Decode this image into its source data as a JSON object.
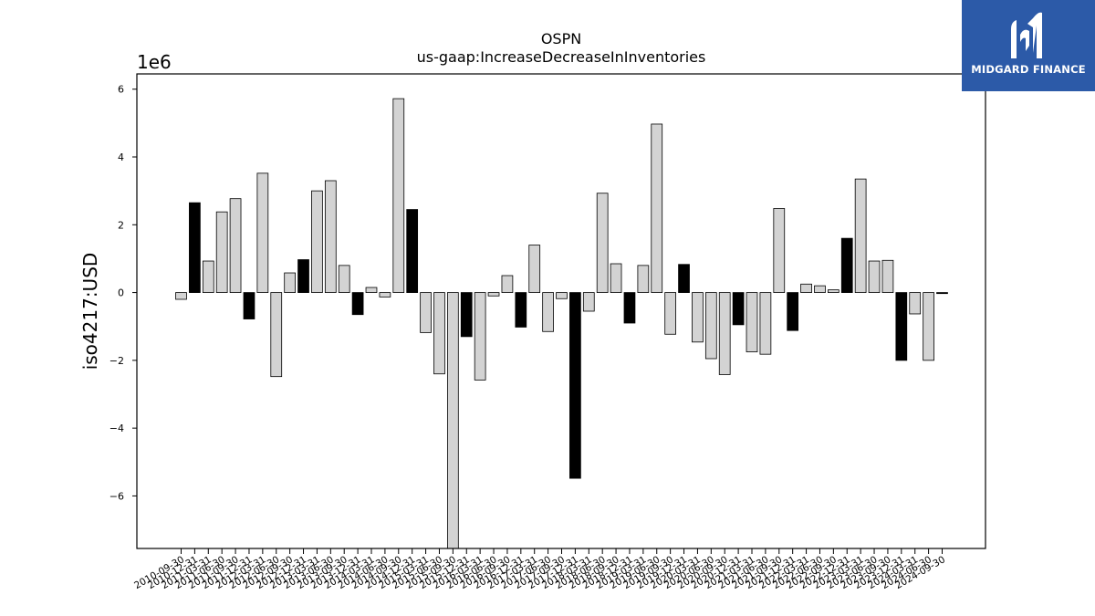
{
  "chart_data": {
    "type": "bar",
    "title": "OSPN",
    "subtitle": "us-gaap:IncreaseDecreaseInInventories",
    "ylabel": "iso4217:USD",
    "offset_text": "1e6",
    "ylim": [
      -7.55,
      6.45
    ],
    "yticks": [
      -6,
      -4,
      -2,
      0,
      2,
      4,
      6
    ],
    "ytick_labels": [
      "−6",
      "−4",
      "−2",
      "0",
      "2",
      "4",
      "6"
    ],
    "categories": [
      "2010-09-30",
      "2010-12-31",
      "2011-03-31",
      "2011-06-30",
      "2011-09-30",
      "2011-12-31",
      "2012-03-31",
      "2012-06-30",
      "2012-09-30",
      "2012-12-31",
      "2013-03-31",
      "2013-06-30",
      "2013-09-30",
      "2013-12-31",
      "2014-03-31",
      "2014-06-30",
      "2014-09-30",
      "2014-12-31",
      "2015-03-31",
      "2015-06-30",
      "2015-09-30",
      "2015-12-31",
      "2016-03-31",
      "2016-06-30",
      "2016-09-30",
      "2016-12-31",
      "2017-03-31",
      "2017-06-30",
      "2017-09-30",
      "2017-12-31",
      "2018-03-31",
      "2018-06-30",
      "2018-09-30",
      "2018-12-31",
      "2019-03-31",
      "2019-06-30",
      "2019-09-30",
      "2019-12-31",
      "2020-03-31",
      "2020-06-30",
      "2020-09-30",
      "2020-12-31",
      "2021-03-31",
      "2021-06-30",
      "2021-09-30",
      "2021-12-31",
      "2022-03-31",
      "2022-06-30",
      "2022-09-30",
      "2022-12-31",
      "2023-03-31",
      "2023-06-30",
      "2023-09-30",
      "2023-12-31",
      "2024-03-31",
      "2024-06-30",
      "2024-09-30"
    ],
    "values": [
      -0.2,
      2.65,
      0.93,
      2.38,
      2.77,
      -0.78,
      3.52,
      -2.48,
      0.58,
      0.97,
      3.0,
      3.3,
      0.8,
      -0.65,
      0.15,
      -0.13,
      5.72,
      2.45,
      -1.18,
      -2.4,
      -7.55,
      -1.3,
      -2.58,
      -0.1,
      0.5,
      -1.02,
      1.4,
      -1.15,
      -0.18,
      -5.48,
      -0.55,
      2.93,
      0.85,
      -0.9,
      0.8,
      4.97,
      -1.23,
      0.83,
      -1.46,
      -1.95,
      -2.42,
      -0.95,
      -1.75,
      -1.82,
      2.48,
      -1.12,
      0.25,
      0.2,
      0.08,
      1.6,
      3.35,
      0.93,
      0.95,
      -2.0,
      -0.63,
      -2.0,
      -0.03
    ],
    "bar_fill": [
      "#d3d3d3",
      "#000000",
      "#d3d3d3",
      "#d3d3d3",
      "#d3d3d3",
      "#000000",
      "#d3d3d3",
      "#d3d3d3",
      "#d3d3d3",
      "#000000",
      "#d3d3d3",
      "#d3d3d3",
      "#d3d3d3",
      "#000000",
      "#d3d3d3",
      "#d3d3d3",
      "#d3d3d3",
      "#000000",
      "#d3d3d3",
      "#d3d3d3",
      "#d3d3d3",
      "#000000",
      "#d3d3d3",
      "#d3d3d3",
      "#d3d3d3",
      "#000000",
      "#d3d3d3",
      "#d3d3d3",
      "#d3d3d3",
      "#000000",
      "#d3d3d3",
      "#d3d3d3",
      "#d3d3d3",
      "#000000",
      "#d3d3d3",
      "#d3d3d3",
      "#d3d3d3",
      "#000000",
      "#d3d3d3",
      "#d3d3d3",
      "#d3d3d3",
      "#000000",
      "#d3d3d3",
      "#d3d3d3",
      "#d3d3d3",
      "#000000",
      "#d3d3d3",
      "#d3d3d3",
      "#d3d3d3",
      "#000000",
      "#d3d3d3",
      "#d3d3d3",
      "#d3d3d3",
      "#000000",
      "#d3d3d3",
      "#d3d3d3",
      "#000000"
    ],
    "grid": false,
    "legend": "none"
  },
  "logo": {
    "text": "MIDGARD FINANCE",
    "background": "#2c5aa8",
    "icon": "midgard-logo-icon"
  }
}
